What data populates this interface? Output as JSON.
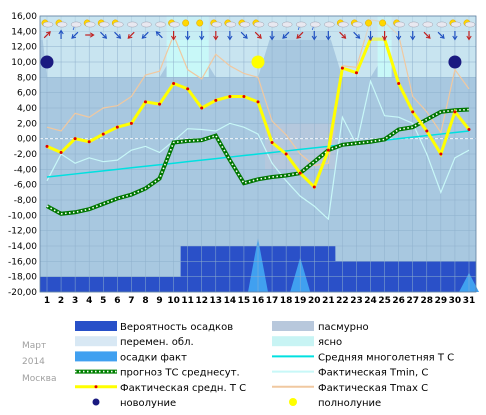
{
  "chart_data": {
    "type": "line",
    "yaxis": {
      "min": -20,
      "max": 16,
      "step": 2,
      "format": "fixed2"
    },
    "xaxis": {
      "categories": [
        "1",
        "2",
        "3",
        "4",
        "5",
        "6",
        "7",
        "8",
        "9",
        "10",
        "11",
        "12",
        "13",
        "14",
        "15",
        "16",
        "17",
        "18",
        "19",
        "20",
        "21",
        "22",
        "23",
        "24",
        "25",
        "26",
        "27",
        "28",
        "29",
        "30",
        "31"
      ]
    },
    "series": [
      {
        "name": "Средняя многолетняя Т С",
        "color": "#00e0e0",
        "values": [
          -5.0,
          -4.8,
          -4.6,
          -4.4,
          -4.2,
          -4.0,
          -3.8,
          -3.6,
          -3.4,
          -3.2,
          -3.0,
          -2.8,
          -2.6,
          -2.4,
          -2.2,
          -2.0,
          -1.8,
          -1.6,
          -1.4,
          -1.2,
          -1.0,
          -0.8,
          -0.6,
          -0.4,
          -0.2,
          0.0,
          0.2,
          0.4,
          0.6,
          0.8,
          1.0
        ]
      },
      {
        "name": "прогноз ТС среднесут.",
        "color": "#007700",
        "values": [
          -8.8,
          -9.8,
          -9.6,
          -9.2,
          -8.5,
          -7.8,
          -7.3,
          -6.5,
          -5.2,
          -0.5,
          -0.3,
          -0.2,
          0.4,
          -2.8,
          -5.8,
          -5.3,
          -5.0,
          -4.8,
          -4.5,
          -3.0,
          -1.5,
          -0.8,
          -0.6,
          -0.4,
          -0.1,
          1.2,
          1.5,
          2.5,
          3.5,
          3.7,
          3.8
        ]
      },
      {
        "name": "Фактическая средн. Т С",
        "color": "#ffff00",
        "values": [
          -1.0,
          -1.8,
          0.0,
          -0.4,
          0.6,
          1.5,
          2.0,
          4.8,
          4.5,
          7.2,
          6.5,
          4.0,
          5.0,
          5.5,
          5.5,
          4.8,
          -0.5,
          -2.0,
          -4.5,
          -6.3,
          -1.5,
          9.2,
          8.6,
          13.0,
          13.0,
          7.2,
          3.5,
          1.0,
          -2.0,
          3.5,
          1.2
        ]
      },
      {
        "name": "Фактическая Tmin, С",
        "color": "#c8f8f8",
        "values": [
          -5.5,
          -2.0,
          -3.2,
          -2.5,
          -3.0,
          -2.8,
          -1.5,
          -1.0,
          -1.8,
          -0.3,
          1.3,
          1.2,
          1.0,
          2.0,
          1.5,
          0.6,
          -3.2,
          -5.5,
          -7.5,
          -8.8,
          -10.5,
          2.8,
          -0.8,
          7.5,
          3.0,
          2.8,
          2.0,
          -2.0,
          -7.0,
          -2.5,
          -1.5
        ]
      },
      {
        "name": "Фактическая Tmax C",
        "color": "#f0c8a0",
        "values": [
          1.5,
          1.0,
          3.3,
          2.8,
          4.0,
          4.3,
          5.5,
          8.3,
          8.8,
          13.5,
          9.0,
          7.8,
          11.0,
          9.5,
          8.5,
          8.0,
          2.3,
          0.5,
          -2.0,
          -3.5,
          -3.2,
          9.5,
          9.3,
          15.5,
          15.2,
          13.5,
          5.5,
          3.5,
          0.8,
          9.0,
          6.5
        ]
      }
    ],
    "precip_prob_levels": [
      -18,
      -18,
      -18,
      -18,
      -18,
      -18,
      -18,
      -18,
      -18,
      -18,
      -14,
      -14,
      -14,
      -14,
      -14,
      -14,
      -14,
      -14,
      -14,
      -14,
      -14,
      -16,
      -16,
      -16,
      -16,
      -16,
      -16,
      -16,
      -16,
      -16,
      -16
    ],
    "precip_fact_spikes": [
      {
        "day": 16,
        "peak": -13
      },
      {
        "day": 19,
        "peak": -15.5
      },
      {
        "day": 31,
        "peak": -17.5
      }
    ],
    "moon_phases": [
      {
        "day": 1,
        "value": 10,
        "phase": "новолуние",
        "color": "#1a1a80"
      },
      {
        "day": 16,
        "value": 10,
        "phase": "полнолуние",
        "color": "#ffff00"
      },
      {
        "day": 30,
        "value": 10,
        "phase": "новолуние",
        "color": "#1a1a80"
      }
    ],
    "sky_bands": [
      {
        "from": -20,
        "to": 16,
        "kind": "пасмурно",
        "color": "#a8c8e0"
      },
      {
        "from": 8,
        "to": 16,
        "kind": "перемен. обл.",
        "color": "#c8e4f0"
      },
      {
        "from": 11,
        "to": 16,
        "kind": "ясно",
        "color": "#c8f8f8"
      }
    ]
  },
  "meta": {
    "month": "Март",
    "year": "2014",
    "city": "Москва"
  },
  "legend": {
    "left": [
      {
        "label": "Вероятность осадков",
        "sym": "box",
        "color": "#2850c8"
      },
      {
        "label": "перемен. обл.",
        "sym": "box",
        "color": "#d8e8f4"
      },
      {
        "label": "осадки факт",
        "sym": "box",
        "color": "#40a0f0"
      },
      {
        "label": "прогноз ТС среднесут.",
        "sym": "dotline",
        "color": "#008000"
      },
      {
        "label": "Фактическая средн. Т С",
        "sym": "thickline",
        "color": "#ffff00"
      },
      {
        "label": "новолуние",
        "sym": "star",
        "color": "#1a1a80"
      }
    ],
    "right": [
      {
        "label": "пасмурно",
        "sym": "box",
        "color": "#b8c8dc"
      },
      {
        "label": "ясно",
        "sym": "box",
        "color": "#c8f4f4"
      },
      {
        "label": "Средняя многолетняя Т С",
        "sym": "line",
        "color": "#00e0e0"
      },
      {
        "label": "Фактическая Tmin, С",
        "sym": "line",
        "color": "#c8f8f8"
      },
      {
        "label": "Фактическая Tmax C",
        "sym": "line",
        "color": "#f0c8a0"
      },
      {
        "label": "полнолуние",
        "sym": "dot",
        "color": "#ffff00"
      }
    ]
  },
  "weather_icons": [
    "sun-cloud",
    "sun-cloud",
    "cloud-rain",
    "sun-cloud",
    "sun-cloud",
    "sun-cloud",
    "cloud",
    "cloud",
    "cloud",
    "sun-cloud",
    "sun",
    "sun",
    "sun-cloud",
    "sun-cloud",
    "sun-cloud",
    "sun-cloud",
    "cloud",
    "cloud",
    "cloud-snow",
    "cloud-snow",
    "cloud",
    "sun-cloud",
    "sun-cloud",
    "sun",
    "sun",
    "sun-cloud",
    "cloud",
    "cloud",
    "cloud",
    "sun-cloud",
    "sun-cloud"
  ],
  "wind_arrows": [
    "ne",
    "n",
    "sw",
    "e",
    "se",
    "se",
    "sw",
    "sw",
    "nw",
    "s",
    "s",
    "s",
    "s",
    "s",
    "se",
    "se",
    "s",
    "sw",
    "sw",
    "s",
    "s",
    "se",
    "se",
    "s",
    "s",
    "s",
    "s",
    "se",
    "se",
    "s",
    "s"
  ]
}
